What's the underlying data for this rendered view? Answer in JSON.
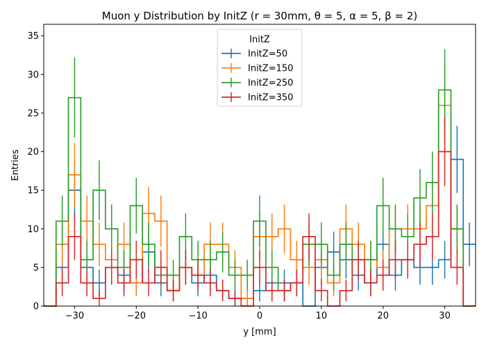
{
  "chart_data": {
    "type": "histogram",
    "title": "Muon y Distribution by InitZ (r = 30mm, θ = 5, α = 5, β = 2)",
    "xlabel": "y [mm]",
    "ylabel": "Entries",
    "xlim": [
      -35,
      35
    ],
    "ylim": [
      0,
      36.5
    ],
    "xticks": [
      -30,
      -20,
      -10,
      0,
      10,
      20,
      30
    ],
    "yticks": [
      0,
      5,
      10,
      15,
      20,
      25,
      30,
      35
    ],
    "grid": false,
    "legend": {
      "title": "InitZ",
      "placement": "top-center"
    },
    "bin_edges": [
      -35,
      -33,
      -31,
      -29,
      -27,
      -25,
      -23,
      -21,
      -19,
      -17,
      -15,
      -13,
      -11,
      -9,
      -7,
      -5,
      -3,
      -1,
      1,
      3,
      5,
      7,
      9,
      11,
      13,
      15,
      17,
      19,
      21,
      23,
      25,
      27,
      29,
      31,
      33,
      35
    ],
    "series": [
      {
        "name": "InitZ=50",
        "color": "#1f77b4",
        "values": [
          0,
          5,
          15,
          5,
          3,
          5,
          4,
          3,
          7,
          3,
          2,
          5,
          3,
          4,
          2,
          1,
          1,
          2,
          3,
          3,
          3,
          0,
          5,
          7,
          6,
          4,
          3,
          8,
          4,
          6,
          5,
          5,
          6,
          19,
          8
        ]
      },
      {
        "name": "InitZ=150",
        "color": "#ff7f0e",
        "values": [
          0,
          8,
          17,
          11,
          8,
          6,
          8,
          3,
          12,
          11,
          2,
          5,
          4,
          8,
          8,
          5,
          1,
          9,
          9,
          10,
          6,
          5,
          6,
          3,
          10,
          8,
          6,
          5,
          10,
          10,
          10,
          13,
          26,
          10,
          0
        ]
      },
      {
        "name": "InitZ=250",
        "color": "#2ca02c",
        "values": [
          0,
          11,
          27,
          6,
          15,
          10,
          5,
          13,
          8,
          4,
          4,
          9,
          6,
          6,
          7,
          4,
          4,
          11,
          5,
          2,
          3,
          8,
          8,
          4,
          8,
          6,
          6,
          13,
          10,
          9,
          14,
          16,
          28,
          10,
          0
        ]
      },
      {
        "name": "InitZ=350",
        "color": "#d62728",
        "values": [
          0,
          3,
          9,
          3,
          1,
          5,
          3,
          6,
          3,
          5,
          2,
          5,
          4,
          3,
          2,
          1,
          0,
          5,
          2,
          2,
          3,
          9,
          2,
          0,
          2,
          6,
          3,
          4,
          6,
          6,
          8,
          9,
          20,
          5,
          0
        ]
      }
    ]
  }
}
